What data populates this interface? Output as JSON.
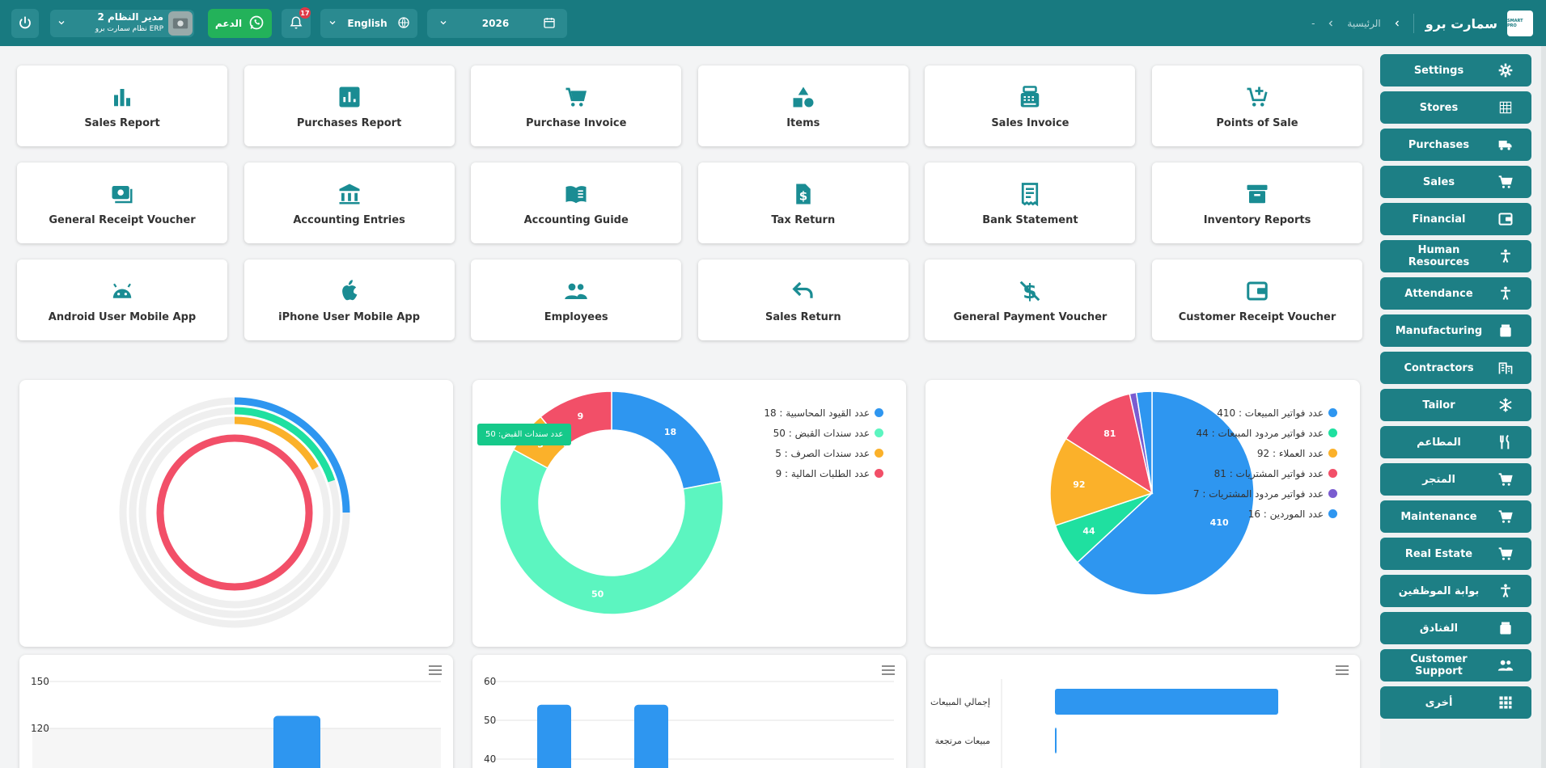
{
  "colors": {
    "teal": "#187a80",
    "accent_icon": "#1a8c93",
    "green": "#23b25a",
    "blue": "#2e96f0",
    "mint": "#5cf5c0",
    "orange": "#fbb12a",
    "red": "#f24f68",
    "purple": "#7a5cd0"
  },
  "header": {
    "brand": "سمارت برو",
    "home": "الرئيسية",
    "dash": "-",
    "user_name": "مدير النظام 2",
    "user_sub": "نظام سمارت برو ERP",
    "support": "الدعم",
    "notif_count": "17",
    "language": "English",
    "year": "2026",
    "logo_text": "SMART PRO"
  },
  "sidebar": {
    "items": [
      {
        "label": "Settings",
        "icon": "gear-icon"
      },
      {
        "label": "Stores",
        "icon": "grid-icon"
      },
      {
        "label": "Purchases",
        "icon": "truck-icon"
      },
      {
        "label": "Sales",
        "icon": "cart-icon"
      },
      {
        "label": "Financial",
        "icon": "wallet-icon"
      },
      {
        "label": "Human Resources",
        "icon": "person-icon"
      },
      {
        "label": "Attendance",
        "icon": "person-icon"
      },
      {
        "label": "Manufacturing",
        "icon": "box-icon"
      },
      {
        "label": "Contractors",
        "icon": "building-icon"
      },
      {
        "label": "Tailor",
        "icon": "snowflake-icon"
      },
      {
        "label": "المطاعم",
        "icon": "utensils-icon"
      },
      {
        "label": "المتجر",
        "icon": "cart-icon"
      },
      {
        "label": "Maintenance",
        "icon": "cart-icon"
      },
      {
        "label": "Real Estate",
        "icon": "cart-icon"
      },
      {
        "label": "بوابة الموظفين",
        "icon": "person-icon"
      },
      {
        "label": "الفنادق",
        "icon": "box-icon"
      },
      {
        "label": "Customer Support",
        "icon": "people-icon"
      },
      {
        "label": "أخرى",
        "icon": "apps-icon"
      }
    ]
  },
  "tiles": [
    {
      "label": "Sales Report",
      "icon": "bar-chart-icon"
    },
    {
      "label": "Purchases Report",
      "icon": "report-icon"
    },
    {
      "label": "Purchase Invoice",
      "icon": "cart-icon"
    },
    {
      "label": "Items",
      "icon": "shapes-icon"
    },
    {
      "label": "Sales Invoice",
      "icon": "cash-register-icon"
    },
    {
      "label": "Points of Sale",
      "icon": "cart-plus-icon"
    },
    {
      "label": "General Receipt Voucher",
      "icon": "money-icon"
    },
    {
      "label": "Accounting Entries",
      "icon": "bank-icon"
    },
    {
      "label": "Accounting Guide",
      "icon": "book-icon"
    },
    {
      "label": "Tax Return",
      "icon": "dollar-file-icon"
    },
    {
      "label": "Bank Statement",
      "icon": "receipt-icon"
    },
    {
      "label": "Inventory Reports",
      "icon": "archive-icon"
    },
    {
      "label": "Android User Mobile App",
      "icon": "android-icon"
    },
    {
      "label": "iPhone User Mobile App",
      "icon": "apple-icon"
    },
    {
      "label": "Employees",
      "icon": "people-icon"
    },
    {
      "label": "Sales Return",
      "icon": "undo-icon"
    },
    {
      "label": "General Payment Voucher",
      "icon": "no-dollar-icon"
    },
    {
      "label": "Customer Receipt Voucher",
      "icon": "wallet-icon"
    }
  ],
  "chart_data": [
    {
      "type": "pie",
      "categories": [
        "عدد فواتير المبيعات",
        "عدد فواتير مردود المبيعات",
        "عدد العملاء",
        "عدد فواتير المشتريات",
        "عدد فواتير مردود المشتريات",
        "عدد الموردين"
      ],
      "values": [
        410,
        44,
        92,
        81,
        7,
        16
      ],
      "legend": [
        "عدد فواتير المبيعات : 410",
        "عدد فواتير مردود المبيعات : 44",
        "عدد العملاء : 92",
        "عدد فواتير المشتريات : 81",
        "عدد فواتير مردود المشتريات : 7",
        "عدد الموردين : 16"
      ],
      "colors": [
        "#2e96f0",
        "#1fe0a0",
        "#fbb12a",
        "#f24f68",
        "#7a5cd0",
        "#2e96f0"
      ],
      "legend_position": "top-right"
    },
    {
      "type": "pie",
      "donut": true,
      "categories": [
        "عدد القيود المحاسبية",
        "عدد سندات القبض",
        "عدد سندات الصرف",
        "عدد الطلبات المالية"
      ],
      "values": [
        18,
        50,
        5,
        9
      ],
      "legend": [
        "عدد القيود المحاسبية : 18",
        "عدد سندات القبض : 50",
        "عدد سندات الصرف : 5",
        "عدد الطلبات المالية : 9"
      ],
      "colors": [
        "#2e96f0",
        "#5cf5c0",
        "#fbb12a",
        "#f24f68"
      ],
      "tooltip": "عدد سندات القبض: 50",
      "legend_position": "top-right"
    },
    {
      "type": "radialBar",
      "values": [
        0.25,
        0.2,
        0.17,
        1.0
      ],
      "colors": [
        "#2e96f0",
        "#1fe0a0",
        "#fbb12a",
        "#f24f68"
      ]
    },
    {
      "type": "bar",
      "yticks": [
        "150",
        "120"
      ],
      "ylim": [
        110,
        150
      ],
      "values": [
        128
      ],
      "colors": [
        "#2e96f0"
      ]
    },
    {
      "type": "bar",
      "yticks": [
        "60",
        "50",
        "40"
      ],
      "ylim": [
        40,
        60
      ],
      "values": [
        54,
        54
      ],
      "colors": [
        "#2e96f0"
      ]
    },
    {
      "type": "bar",
      "horizontal": true,
      "categories": [
        "إجمالي المبيعات",
        "مبيعات مرتجعة"
      ],
      "values": [
        1.0,
        0.005
      ],
      "colors": [
        "#2e96f0"
      ]
    }
  ]
}
